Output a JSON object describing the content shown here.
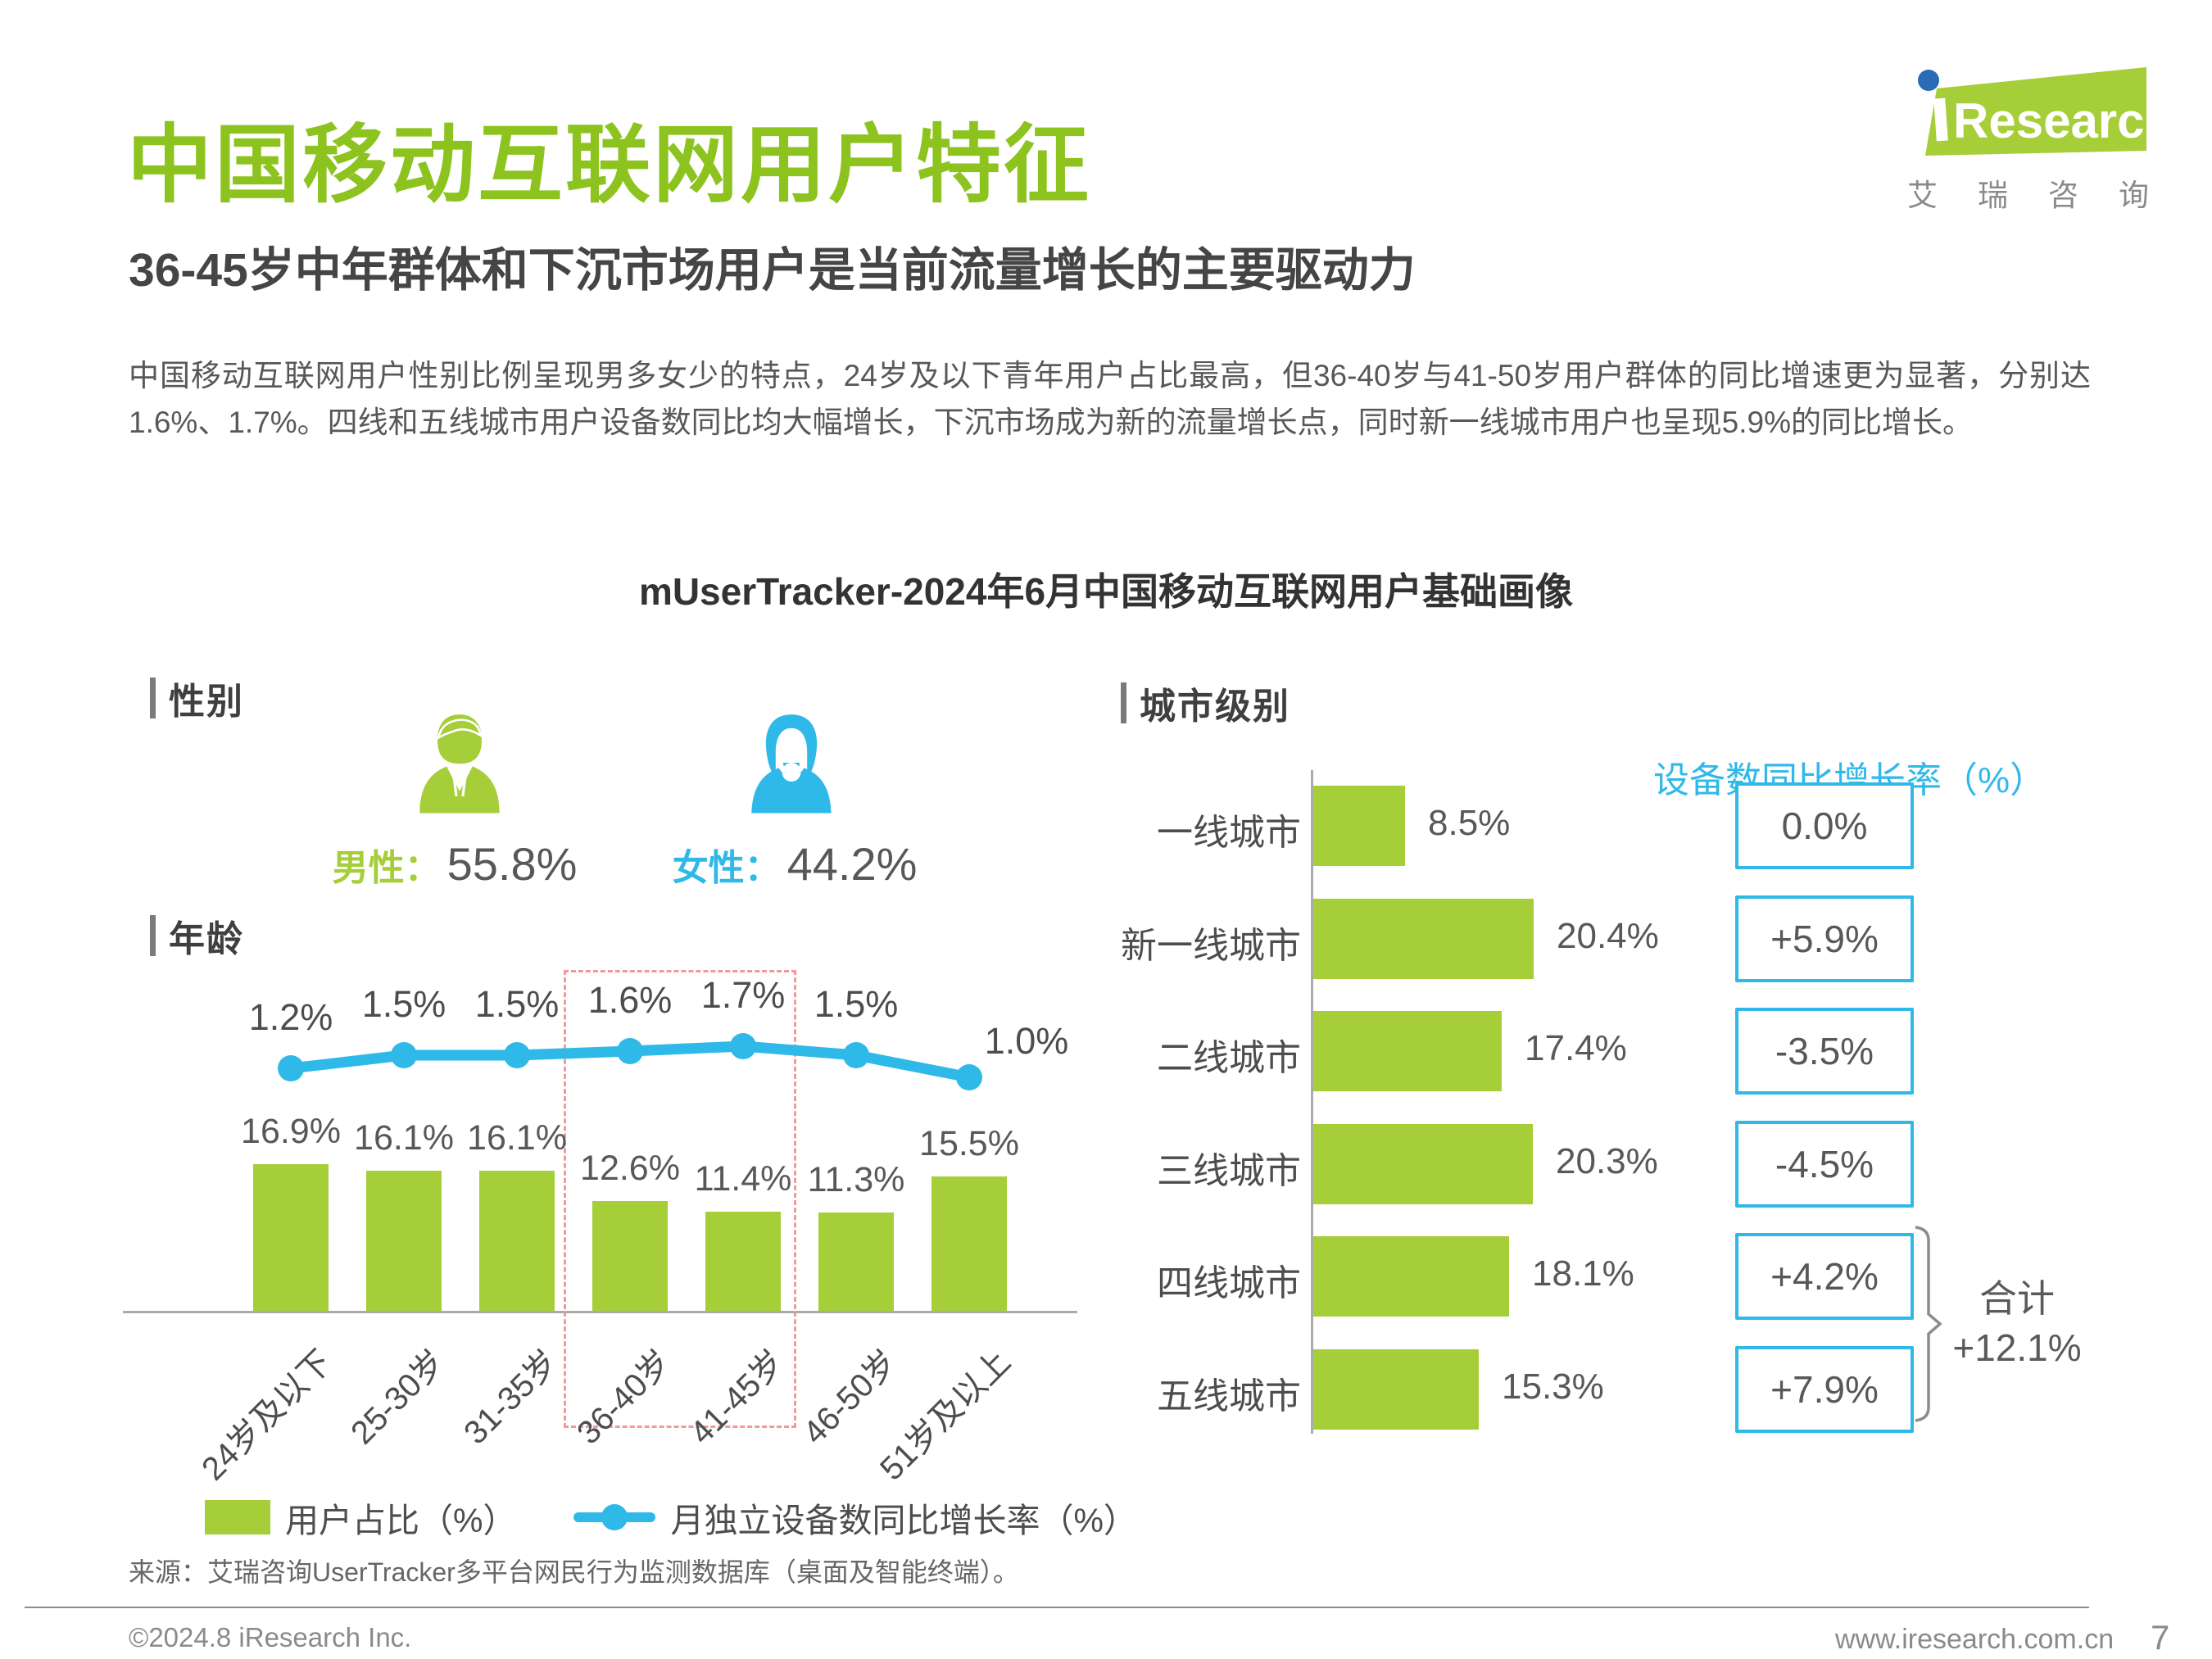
{
  "logo": {
    "brand_text": "Research",
    "cn_chars": [
      "艾",
      "瑞",
      "咨",
      "询"
    ]
  },
  "header": {
    "title": "中国移动互联网用户特征",
    "subtitle": "36-45岁中年群体和下沉市场用户是当前流量增长的主要驱动力",
    "paragraph": "中国移动互联网用户性别比例呈现男多女少的特点，24岁及以下青年用户占比最高，但36-40岁与41-50岁用户群体的同比增速更为显著，分别达1.6%、1.7%。四线和五线城市用户设备数同比均大幅增长，下沉市场成为新的流量增长点，同时新一线城市用户也呈现5.9%的同比增长。"
  },
  "chart_header": "mUserTracker-2024年6月中国移动互联网用户基础画像",
  "gender": {
    "section_label": "性别",
    "male_label": "男性：",
    "male_value": "55.8%",
    "female_label": "女性：",
    "female_value": "44.2%"
  },
  "age_section_label": "年龄",
  "city_section": {
    "section_label": "城市级别",
    "growth_title": "设备数同比增长率（%）",
    "total_label": "合计",
    "total_value": "+12.1%"
  },
  "legend": {
    "bar_label": "用户占比（%）",
    "line_label": "月独立设备数同比增长率（%）"
  },
  "source": "来源：艾瑞咨询UserTracker多平台网民行为监测数据库（桌面及智能终端）。",
  "footer": {
    "copyright": "©2024.8 iResearch Inc.",
    "website": "www.iresearch.com.cn",
    "page": "7"
  },
  "colors": {
    "brand_green": "#A5CE39",
    "title_green": "#8DC31F",
    "brand_cyan": "#2FB9E9",
    "highlight_dash": "#F09A9B",
    "text_gray": "#595757"
  },
  "chart_data": [
    {
      "type": "bar",
      "title": "年龄",
      "categories": [
        "24岁及以下",
        "25-30岁",
        "31-35岁",
        "36-40岁",
        "41-45岁",
        "46-50岁",
        "51岁及以上"
      ],
      "series": [
        {
          "name": "用户占比（%）",
          "type": "bar",
          "values": [
            16.9,
            16.1,
            16.1,
            12.6,
            11.4,
            11.3,
            15.5
          ]
        },
        {
          "name": "月独立设备数同比增长率（%）",
          "type": "line",
          "values": [
            1.2,
            1.5,
            1.5,
            1.6,
            1.7,
            1.5,
            1.0
          ]
        }
      ],
      "ylabel": "",
      "xlabel": "",
      "grid": false,
      "legend_position": "bottom",
      "highlight_categories": [
        "36-40岁",
        "41-45岁"
      ]
    },
    {
      "type": "bar",
      "orientation": "horizontal",
      "title": "城市级别",
      "categories": [
        "一线城市",
        "新一线城市",
        "二线城市",
        "三线城市",
        "四线城市",
        "五线城市"
      ],
      "series": [
        {
          "name": "用户占比（%）",
          "values": [
            8.5,
            20.4,
            17.4,
            20.3,
            18.1,
            15.3
          ]
        },
        {
          "name": "设备数同比增长率（%）",
          "values": [
            "0.0%",
            "+5.9%",
            "-3.5%",
            "-4.5%",
            "+4.2%",
            "+7.9%"
          ]
        }
      ],
      "total": {
        "label": "合计",
        "value": "+12.1%",
        "applies_to": [
          "四线城市",
          "五线城市"
        ]
      },
      "grid": false
    }
  ]
}
